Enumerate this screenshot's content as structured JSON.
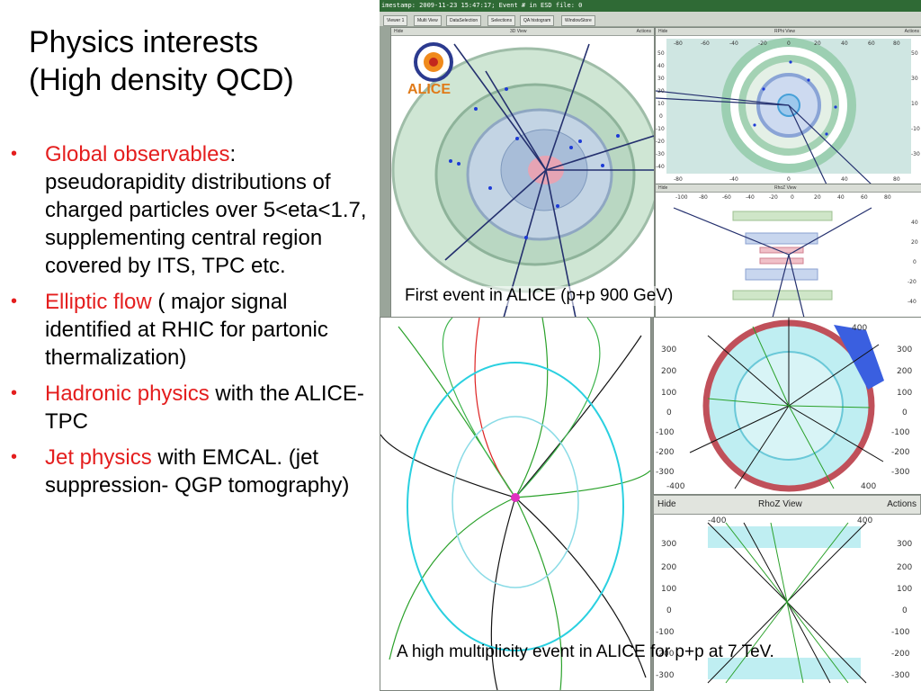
{
  "slide": {
    "title_line1": "Physics interests",
    "title_line2": "(High density QCD)",
    "accent_color": "#e41e1e",
    "bullets": [
      {
        "highlight": "Global observables",
        "rest": ": pseudorapidity distributions of charged particles over 5<eta<1.7, supplementing central region covered by ITS, TPC etc."
      },
      {
        "highlight": "Elliptic flow",
        "rest": " ( major signal identified at RHIC for partonic thermalization)"
      },
      {
        "highlight": "Hadronic physics",
        "rest": " with the ALICE-TPC"
      },
      {
        "highlight": "Jet physics",
        "rest": " with EMCAL. (jet suppression- QGP tomography)"
      }
    ]
  },
  "event1": {
    "status_text": "imestamp: 2009-11-23 15:47:17; Event # in ESD file: 0",
    "tabs": [
      "Viewer 1",
      "Multi View",
      "DataSelection",
      "Selections",
      "QA histogram",
      "WindowStore"
    ],
    "view3d": {
      "hide": "Hide",
      "title": "3D View",
      "actions": "Actions"
    },
    "rphi": {
      "hide": "Hide",
      "title": "RPhi View",
      "actions": "Actions",
      "x_ticks": [
        "-80",
        "-60",
        "-40",
        "-20",
        "0",
        "20",
        "40",
        "60",
        "80"
      ],
      "y_ticks": [
        "50",
        "40",
        "30",
        "20",
        "10",
        "0",
        "-10",
        "-20",
        "-30",
        "-40"
      ]
    },
    "rhoz": {
      "hide": "Hide",
      "title": "RhoZ View",
      "x_ticks": [
        "-100",
        "-80",
        "-60",
        "-40",
        "-20",
        "0",
        "20",
        "40",
        "60",
        "80"
      ],
      "y_ticks": [
        "40",
        "20",
        "0",
        "-20",
        "-40"
      ]
    },
    "logo_text": "ALICE",
    "caption": "First event in ALICE (p+p 900 GeV)"
  },
  "event2": {
    "rphi_ticks_x": [
      "-400",
      "400"
    ],
    "rphi_ticks_y": [
      "300",
      "200",
      "100",
      "0",
      "-100",
      "-200",
      "-300"
    ],
    "rhoz_bar": {
      "hide": "Hide",
      "title": "RhoZ View",
      "actions": "Actions"
    },
    "rhoz_ticks_y": [
      "300",
      "200",
      "100",
      "0",
      "-100",
      "-200",
      "-300"
    ],
    "rhoz_ticks_x": [
      "-400",
      "400"
    ],
    "caption": "A high multiplicity event in ALICE for p+p at 7 TeV."
  }
}
